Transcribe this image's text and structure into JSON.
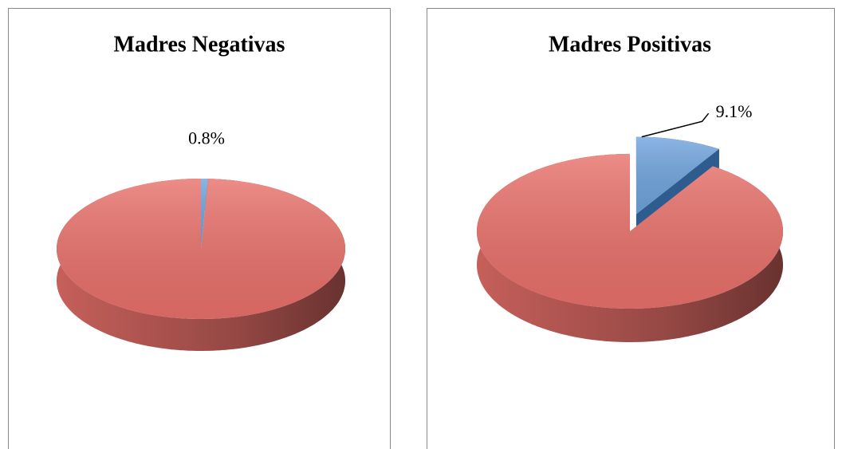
{
  "chart_data": [
    {
      "type": "pie",
      "title": "Madres Negativas",
      "values": [
        0.8,
        99.2
      ],
      "value_labels": [
        "0.8%",
        null
      ],
      "colors": [
        "#6fa3dc",
        "#e8706a"
      ],
      "explode": [
        false,
        false
      ]
    },
    {
      "type": "pie",
      "title": "Madres Positivas",
      "values": [
        9.1,
        90.9
      ],
      "value_labels": [
        "9.1%",
        null
      ],
      "colors": [
        "#6fa3dc",
        "#e8706a"
      ],
      "explode": [
        true,
        false
      ]
    }
  ]
}
